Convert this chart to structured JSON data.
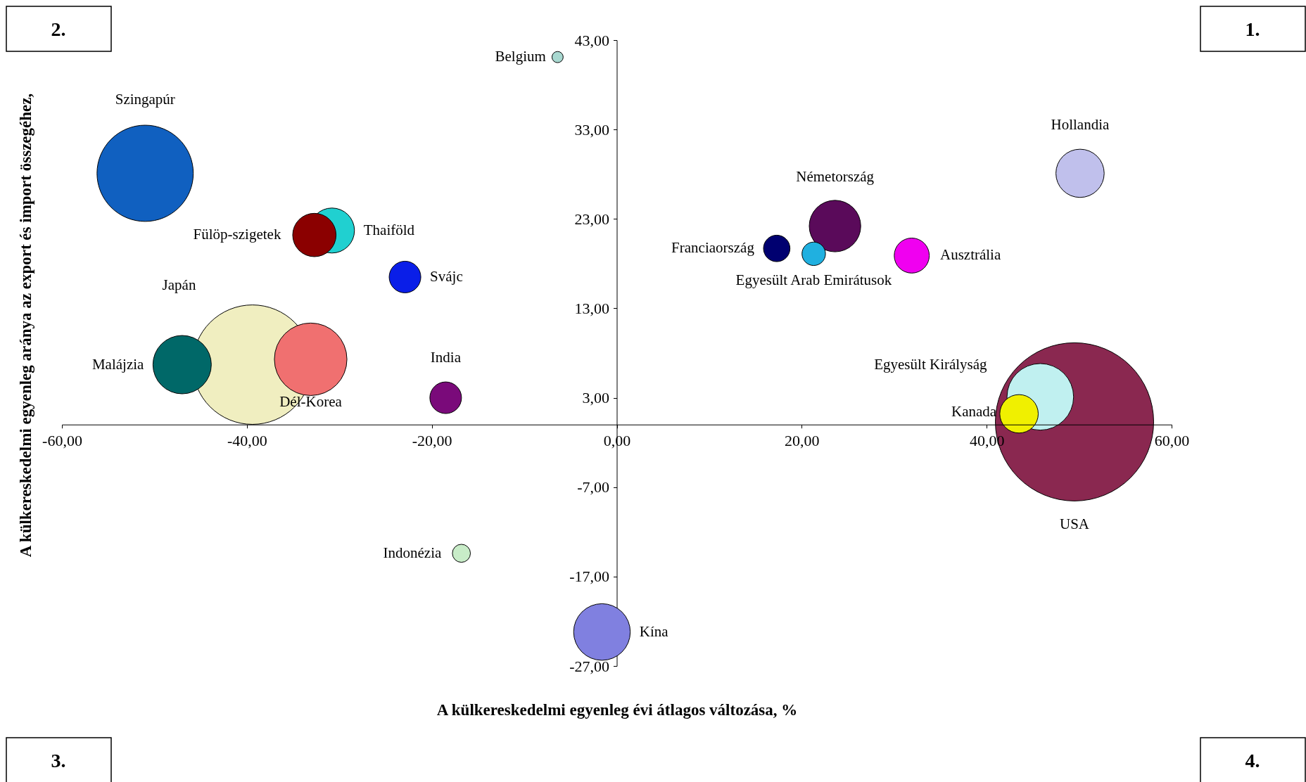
{
  "chart_data": {
    "type": "bubble",
    "xlabel": "A külkereskedelmi egyenleg évi átlagos változása, %",
    "ylabel": "A külkereskedelmi egyenleg aránya az export és import összegéhez,",
    "xlim": [
      -60,
      60
    ],
    "xticks": [
      {
        "value": -60,
        "label": "-60,00"
      },
      {
        "value": -40,
        "label": "-40,00"
      },
      {
        "value": -20,
        "label": "-20,00"
      },
      {
        "value": 0,
        "label": "0,00"
      },
      {
        "value": 20,
        "label": "20,00"
      },
      {
        "value": 40,
        "label": "40,00"
      },
      {
        "value": 60,
        "label": "60,00"
      }
    ],
    "ylim": [
      -27,
      43
    ],
    "yticks": [
      {
        "value": -27,
        "label": "-27,00"
      },
      {
        "value": -17,
        "label": "-17,00"
      },
      {
        "value": -7,
        "label": "-7,00"
      },
      {
        "value": 3,
        "label": "3,00"
      },
      {
        "value": 13,
        "label": "13,00"
      },
      {
        "value": 23,
        "label": "23,00"
      },
      {
        "value": 33,
        "label": "33,00"
      },
      {
        "value": 43,
        "label": "43,00"
      }
    ],
    "grid": false,
    "annotations": [
      "2.",
      "1.",
      "3.",
      "4."
    ],
    "series": [
      {
        "name": "Belgium",
        "color": "#a8d8d0",
        "x": [
          -6.4
        ],
        "values": [
          41.1
        ],
        "sizes": [
          0.005
        ]
      },
      {
        "name": "Szingapúr",
        "color": "#1060c0",
        "x": [
          -51.0
        ],
        "values": [
          28.1
        ],
        "sizes": [
          0.37
        ]
      },
      {
        "name": "Thaiföld",
        "color": "#20d0d0",
        "x": [
          -30.8
        ],
        "values": [
          21.7
        ],
        "sizes": [
          0.081
        ]
      },
      {
        "name": "Fülöp-szigetek",
        "color": "#8b0000",
        "x": [
          -32.7
        ],
        "values": [
          21.2
        ],
        "sizes": [
          0.075
        ]
      },
      {
        "name": "Svájc",
        "color": "#0a1ee8",
        "x": [
          -22.9
        ],
        "values": [
          16.5
        ],
        "sizes": [
          0.04
        ]
      },
      {
        "name": "Japán",
        "color": "#f0eec0",
        "x": [
          -39.4
        ],
        "values": [
          6.7
        ],
        "sizes": [
          0.57
        ]
      },
      {
        "name": "Malájzia",
        "color": "#006868",
        "x": [
          -47.0
        ],
        "values": [
          6.7
        ],
        "sizes": [
          0.136
        ]
      },
      {
        "name": "Dél-Korea",
        "color": "#f07070",
        "x": [
          -33.1
        ],
        "values": [
          7.3
        ],
        "sizes": [
          0.21
        ]
      },
      {
        "name": "India",
        "color": "#7a0a7a",
        "x": [
          -18.5
        ],
        "values": [
          3.0
        ],
        "sizes": [
          0.04
        ]
      },
      {
        "name": "Indonézia",
        "color": "#c8ecc8",
        "x": [
          -16.8
        ],
        "values": [
          -14.4
        ],
        "sizes": [
          0.013
        ]
      },
      {
        "name": "Kína",
        "color": "#8080e0",
        "x": [
          -1.6
        ],
        "values": [
          -23.2
        ],
        "sizes": [
          0.128
        ]
      },
      {
        "name": "Hollandia",
        "color": "#c0c0ec",
        "x": [
          50.1
        ],
        "values": [
          28.1
        ],
        "sizes": [
          0.093
        ]
      },
      {
        "name": "Németország",
        "color": "#5a0a5a",
        "x": [
          23.6
        ],
        "values": [
          22.2
        ],
        "sizes": [
          0.106
        ]
      },
      {
        "name": "Franciaország",
        "color": "#000070",
        "x": [
          17.3
        ],
        "values": [
          19.7
        ],
        "sizes": [
          0.028
        ]
      },
      {
        "name": "Egyesült Arab Emirátusok",
        "color": "#20b0e0",
        "x": [
          21.3
        ],
        "values": [
          19.1
        ],
        "sizes": [
          0.022
        ]
      },
      {
        "name": "Ausztrália",
        "color": "#f000f0",
        "x": [
          31.9
        ],
        "values": [
          18.9
        ],
        "sizes": [
          0.049
        ]
      },
      {
        "name": "USA",
        "color": "#8a2850",
        "x": [
          49.5
        ],
        "values": [
          0.3
        ],
        "sizes": [
          1
        ]
      },
      {
        "name": "Egyesült Királyság",
        "color": "#c0f0f0",
        "x": [
          45.8
        ],
        "values": [
          3.1
        ],
        "sizes": [
          0.177
        ]
      },
      {
        "name": "Kanada",
        "color": "#f0f000",
        "x": [
          43.5
        ],
        "values": [
          1.2
        ],
        "sizes": [
          0.059
        ]
      }
    ]
  }
}
